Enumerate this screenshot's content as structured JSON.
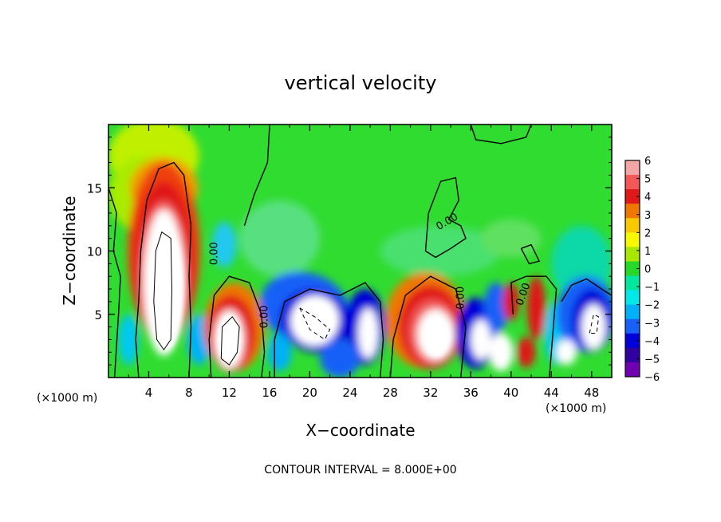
{
  "chart_data": {
    "type": "heatmap",
    "title": "vertical velocity",
    "xlabel": "X−coordinate",
    "ylabel": "Z−coordinate",
    "x_unit_left": "(×1000 m)",
    "x_unit_right": "(×1000 m)",
    "footer": "CONTOUR INTERVAL = 8.000E+00",
    "xlim": [
      0,
      50
    ],
    "ylim": [
      0,
      20
    ],
    "xticks": [
      4,
      8,
      12,
      16,
      20,
      24,
      28,
      32,
      36,
      40,
      44,
      48
    ],
    "yticks": [
      5,
      10,
      15
    ],
    "colorbar": {
      "ticks": [
        "6",
        "5",
        "4",
        "3",
        "2",
        "1",
        "0",
        "−1",
        "−2",
        "−3",
        "−4",
        "−5",
        "−6"
      ],
      "colors": [
        "#f4a6a6",
        "#f25858",
        "#e01818",
        "#f07800",
        "#f8c800",
        "#f8f800",
        "#a8e800",
        "#28d828",
        "#00e8a0",
        "#00e8e8",
        "#00b0f8",
        "#1860f8",
        "#0000d8",
        "#3000a0",
        "#7000b0"
      ],
      "above_color": "#ffffff",
      "below_color": "#ffffff"
    },
    "contour_labels": [
      "0.00",
      "0.00",
      "0.00",
      "0.00",
      "0.00"
    ],
    "features": [
      {
        "kind": "updraft",
        "x": 5.5,
        "z": 8.0
      },
      {
        "kind": "updraft",
        "x": 12.0,
        "z": 3.0
      },
      {
        "kind": "downdraft",
        "x": 20.5,
        "z": 4.5
      },
      {
        "kind": "updraft",
        "x": 32.0,
        "z": 3.5
      },
      {
        "kind": "downdraft",
        "x": 37.0,
        "z": 3.5
      },
      {
        "kind": "updraft",
        "x": 41.5,
        "z": 4.5
      },
      {
        "kind": "downdraft",
        "x": 48.0,
        "z": 4.5
      }
    ]
  }
}
